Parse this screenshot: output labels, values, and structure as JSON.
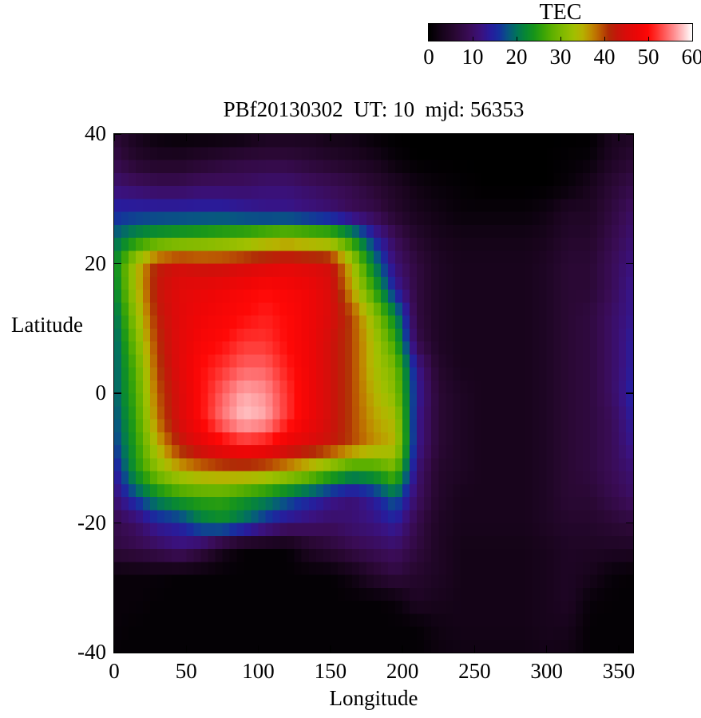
{
  "plot_title": "PBf20130302  UT: 10  mjd: 56353",
  "colorbar": {
    "title": "TEC",
    "min": 0,
    "max": 60,
    "ticks": [
      0,
      10,
      20,
      30,
      40,
      50,
      60
    ]
  },
  "axes": {
    "x": {
      "label": "Longitude",
      "min": 0,
      "max": 360,
      "ticks": [
        0,
        50,
        100,
        150,
        200,
        250,
        300,
        350
      ]
    },
    "y": {
      "label": "Latitude",
      "min": -40,
      "max": 40,
      "ticks": [
        40,
        20,
        0,
        -20,
        -40
      ]
    }
  },
  "chart_data": {
    "type": "heatmap",
    "title": "PBf20130302  UT: 10  mjd: 56353",
    "xlabel": "Longitude",
    "ylabel": "Latitude",
    "xlim": [
      0,
      360
    ],
    "ylim": [
      -40,
      40
    ],
    "legend_position": "top-right-horizontal-colorbar",
    "grid": false,
    "colorbar_title": "TEC",
    "value_range": [
      0,
      60
    ],
    "cell_size_deg": {
      "lon": 5,
      "lat": 2
    },
    "grid_lon": [
      0,
      15,
      30,
      45,
      60,
      75,
      90,
      105,
      120,
      135,
      150,
      165,
      180,
      195,
      210,
      225,
      240,
      255,
      270,
      285,
      300,
      315,
      330,
      345,
      360
    ],
    "grid_lat": [
      40,
      36,
      32,
      28,
      24,
      20,
      16,
      12,
      8,
      4,
      0,
      -4,
      -8,
      -12,
      -16,
      -20,
      -24,
      -28,
      -32,
      -36,
      -40
    ],
    "tec_values": [
      [
        6,
        3,
        1,
        0.5,
        0.5,
        0.7,
        1,
        3,
        3,
        3,
        2,
        2,
        0.5,
        0,
        0,
        0,
        0,
        0,
        0,
        0,
        0,
        0,
        0,
        3,
        4
      ],
      [
        8,
        5,
        4,
        4,
        5,
        6,
        7,
        7,
        7,
        6,
        5,
        4,
        3,
        1,
        0,
        0,
        0,
        0,
        0,
        0,
        0,
        0.5,
        1,
        4,
        6
      ],
      [
        11,
        10,
        9,
        9,
        10,
        10,
        10,
        11,
        11,
        10,
        9,
        8,
        6,
        4,
        2,
        1,
        0.5,
        0,
        0,
        0,
        0,
        1,
        3,
        6,
        8
      ],
      [
        15,
        15,
        15,
        15,
        15,
        15,
        14,
        13,
        13,
        12,
        11,
        9,
        8,
        5,
        3,
        2,
        1,
        1,
        1,
        1,
        2,
        4,
        4,
        7,
        10
      ],
      [
        19,
        23,
        25,
        26,
        27,
        28,
        29,
        31,
        32,
        31,
        30,
        24,
        15,
        9,
        5,
        3,
        2.5,
        2.5,
        2.5,
        2.5,
        3,
        5,
        5,
        8,
        11
      ],
      [
        22,
        34,
        42,
        44,
        43,
        43,
        44,
        45,
        46,
        45,
        44,
        34,
        21,
        11,
        7,
        4,
        3,
        3,
        3,
        3,
        4,
        6,
        6,
        9,
        12
      ],
      [
        21,
        34,
        43,
        46,
        47,
        48,
        49,
        50,
        49,
        48,
        45,
        36,
        26,
        14,
        7,
        4,
        3,
        3,
        3,
        3,
        4,
        6,
        6,
        9,
        13
      ],
      [
        19,
        32,
        42,
        46,
        48,
        49,
        50,
        51,
        50,
        48,
        45,
        40,
        32,
        22,
        7,
        4,
        3,
        3,
        3,
        3,
        4,
        6,
        7,
        10,
        13
      ],
      [
        18,
        30,
        41,
        46,
        49,
        50,
        52,
        52,
        50,
        48,
        44,
        40,
        34,
        26,
        8,
        4,
        3,
        3,
        3,
        3,
        4,
        6,
        7,
        10,
        14
      ],
      [
        18,
        28,
        40,
        46,
        50,
        52,
        54,
        54,
        51,
        48,
        44,
        40,
        34,
        30,
        13,
        5,
        3,
        3,
        3,
        3,
        4,
        6,
        7,
        10,
        14
      ],
      [
        18,
        27,
        39,
        45,
        50,
        54,
        57,
        56,
        52,
        48,
        44,
        40,
        35,
        31,
        14,
        6,
        4,
        3,
        3,
        3,
        4,
        6,
        7,
        10,
        15
      ],
      [
        17,
        26,
        38,
        45,
        50,
        55,
        58,
        57,
        52,
        48,
        44,
        40,
        36,
        34,
        13,
        6,
        4,
        3,
        3,
        3,
        4,
        6,
        7,
        9,
        14
      ],
      [
        16,
        25,
        35,
        42,
        46,
        49,
        51,
        50,
        47,
        45,
        43,
        40,
        37,
        35,
        13,
        6,
        4,
        3,
        3,
        3,
        4,
        6,
        7,
        9,
        13
      ],
      [
        13,
        24,
        31,
        35,
        37,
        38,
        38,
        37,
        35,
        32,
        28,
        24,
        25,
        29,
        11,
        5,
        4,
        3,
        3,
        3,
        4,
        6,
        7,
        9,
        11
      ],
      [
        11,
        17,
        22,
        25,
        26,
        26,
        24,
        22,
        19,
        16,
        13,
        11,
        14,
        19,
        10,
        5,
        3,
        3,
        3,
        3,
        4,
        6,
        6,
        8,
        10
      ],
      [
        8,
        10,
        14,
        15,
        20,
        22,
        19,
        15,
        12,
        11,
        10,
        11,
        12,
        14,
        8,
        4,
        3,
        3,
        3,
        3,
        4,
        5,
        5,
        6,
        7
      ],
      [
        7,
        8,
        9,
        11,
        8,
        3,
        0.5,
        0.5,
        0.5,
        4,
        6,
        8,
        9,
        10,
        7,
        4,
        2.5,
        2.5,
        2.5,
        2.5,
        3,
        4,
        4,
        4,
        4
      ],
      [
        1,
        1,
        1,
        0.5,
        0.5,
        0.5,
        0.5,
        0.5,
        0.5,
        0.5,
        0.5,
        2,
        5,
        7,
        5,
        4,
        2.5,
        2.5,
        2.5,
        2.5,
        3,
        4,
        3,
        1,
        0.5
      ],
      [
        1,
        1,
        0.5,
        0.5,
        0.5,
        0.5,
        0.5,
        0.5,
        0.5,
        0.5,
        0.5,
        0.5,
        0.5,
        1,
        4,
        3,
        2.5,
        2.5,
        2.5,
        2.5,
        3,
        4,
        1,
        0.5,
        0.5
      ],
      [
        1,
        0.5,
        0.5,
        0.5,
        0.5,
        0.5,
        0.5,
        0.5,
        0.5,
        0.5,
        0.5,
        0.5,
        0.5,
        0.5,
        0.5,
        2,
        2.5,
        2.5,
        2.5,
        2.5,
        3,
        3,
        0.5,
        0.5,
        0.5
      ],
      [
        0.5,
        0.5,
        0.5,
        0.5,
        0.5,
        0.5,
        0.5,
        0.5,
        0.5,
        0.5,
        0.5,
        0.5,
        0.5,
        0.5,
        0.5,
        1.5,
        2,
        2,
        2,
        2,
        2.5,
        2,
        0.5,
        0.5,
        0.5
      ]
    ],
    "palette_stops": [
      [
        0,
        0,
        0,
        0
      ],
      [
        3,
        24,
        4,
        28
      ],
      [
        6,
        42,
        8,
        52
      ],
      [
        9,
        58,
        12,
        86
      ],
      [
        12,
        58,
        18,
        128
      ],
      [
        14,
        40,
        28,
        156
      ],
      [
        16,
        22,
        48,
        158
      ],
      [
        18,
        8,
        86,
        130
      ],
      [
        20,
        2,
        116,
        90
      ],
      [
        22,
        8,
        136,
        52
      ],
      [
        24,
        24,
        150,
        26
      ],
      [
        26,
        56,
        164,
        8
      ],
      [
        28,
        92,
        176,
        0
      ],
      [
        30,
        122,
        184,
        0
      ],
      [
        33,
        160,
        192,
        0
      ],
      [
        35,
        182,
        178,
        0
      ],
      [
        37,
        192,
        138,
        0
      ],
      [
        39,
        188,
        92,
        2
      ],
      [
        41,
        176,
        44,
        6
      ],
      [
        43,
        198,
        22,
        10
      ],
      [
        45,
        218,
        12,
        10
      ],
      [
        48,
        240,
        6,
        6
      ],
      [
        50,
        255,
        8,
        6
      ],
      [
        52,
        255,
        50,
        46
      ],
      [
        54,
        255,
        96,
        96
      ],
      [
        56,
        255,
        144,
        146
      ],
      [
        58,
        255,
        198,
        200
      ],
      [
        60,
        255,
        255,
        255
      ]
    ]
  }
}
